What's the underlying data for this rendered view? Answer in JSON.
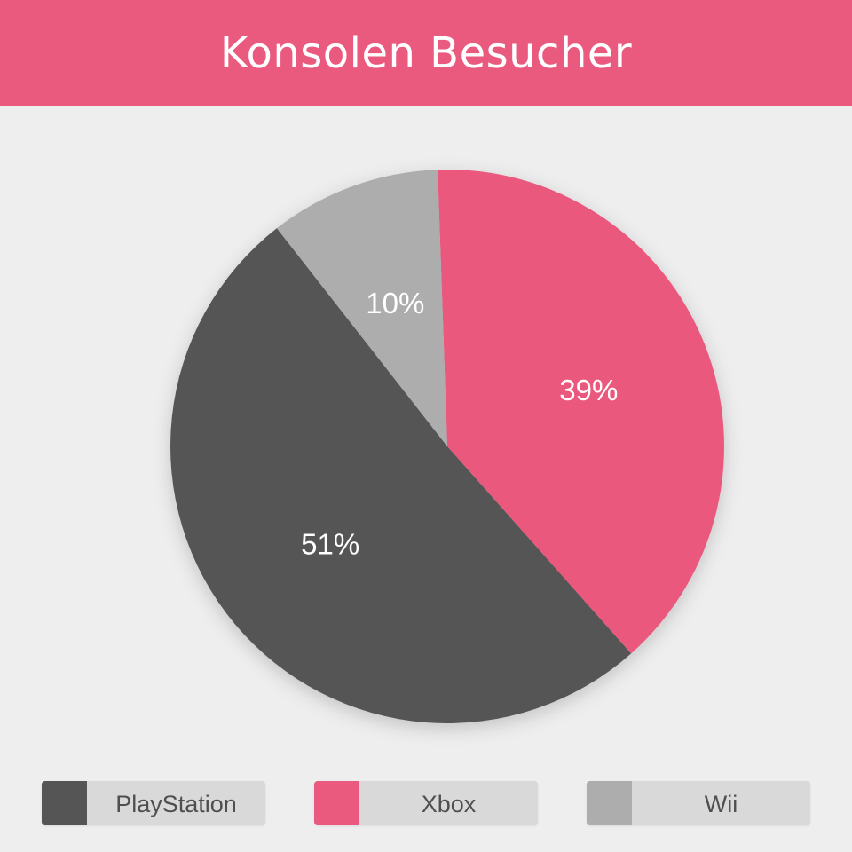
{
  "header": {
    "title": "Konsolen Besucher"
  },
  "colors": {
    "header_bg": "#ea597e",
    "background": "#eeeeee",
    "legend_bg": "#d9d9d9"
  },
  "chart_data": {
    "type": "pie",
    "title": "Konsolen Besucher",
    "start_angle_deg": -2,
    "direction": "clockwise",
    "slices": [
      {
        "name": "Xbox",
        "value": 39,
        "label": "39%",
        "color": "#ea597e"
      },
      {
        "name": "PlayStation",
        "value": 51,
        "label": "51%",
        "color": "#555555"
      },
      {
        "name": "Wii",
        "value": 10,
        "label": "10%",
        "color": "#adadad"
      }
    ],
    "legend": {
      "placement": "bottom",
      "order": [
        "PlayStation",
        "Xbox",
        "Wii"
      ]
    }
  }
}
